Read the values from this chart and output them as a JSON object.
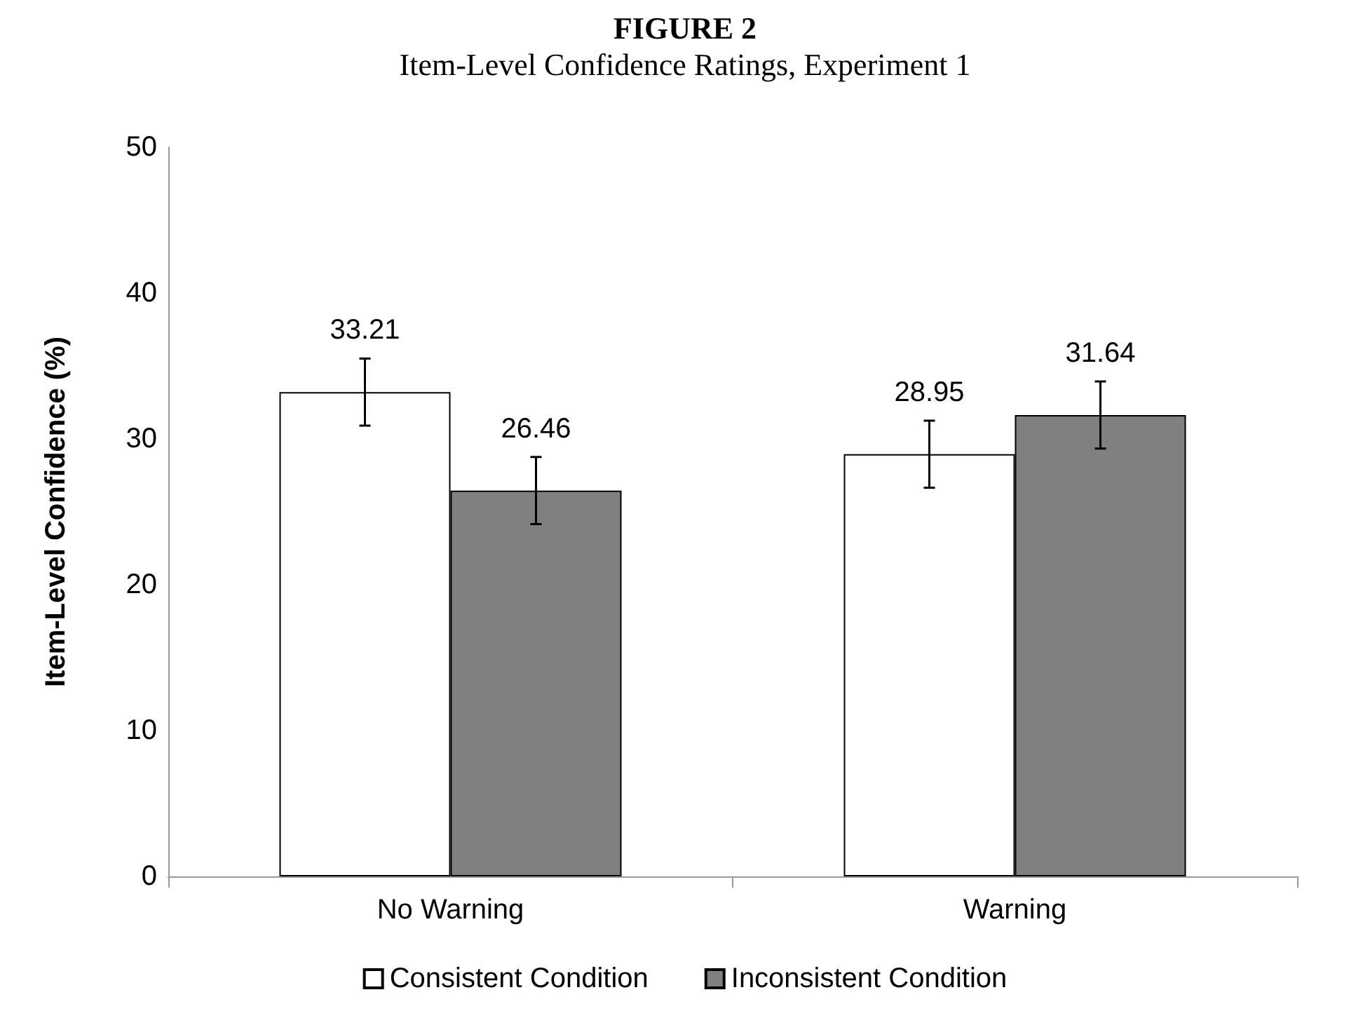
{
  "chart_data": {
    "type": "bar",
    "title": "FIGURE 2",
    "subtitle": "Item-Level Confidence Ratings, Experiment 1",
    "ylabel": "Item-Level Confidence (%)",
    "categories": [
      "No Warning",
      "Warning"
    ],
    "series": [
      {
        "name": "Consistent Condition",
        "color": "#ffffff",
        "values": [
          33.21,
          28.95
        ],
        "errors": [
          2.3,
          2.3
        ]
      },
      {
        "name": "Inconsistent Condition",
        "color": "#808080",
        "values": [
          26.46,
          31.64
        ],
        "errors": [
          2.3,
          2.3
        ]
      }
    ],
    "ylim": [
      0,
      50
    ],
    "yticks": [
      0,
      10,
      20,
      30,
      40,
      50
    ],
    "grid": false,
    "legend": "bottom",
    "data_labels": true
  }
}
